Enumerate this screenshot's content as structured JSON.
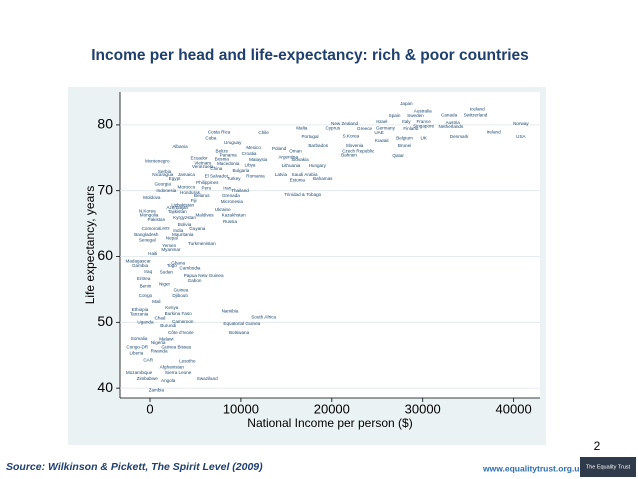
{
  "chart_data": {
    "type": "scatter",
    "title": "Income per head and life-expectancy: rich & poor countries",
    "xlabel": "National Income per person ($)",
    "ylabel": "Life expectancy, years",
    "xlim": [
      -3300,
      42900
    ],
    "ylim": [
      38.5,
      85
    ],
    "xticks": [
      0,
      10000,
      20000,
      30000,
      40000
    ],
    "yticks": [
      40,
      50,
      60,
      70,
      80
    ],
    "grid": true,
    "color": "#1a476f",
    "labels": [
      "Japan",
      "Australia",
      "Iceland",
      "Spain",
      "Sweden",
      "Canada",
      "Switzerland",
      "Israel",
      "Italy",
      "France",
      "Austria",
      "Norway",
      "New Zealand",
      "Malta",
      "Cyprus",
      "Greece",
      "Germany",
      "Finland",
      "Singapore",
      "Netherlands",
      "Costa Rica",
      "Chile",
      "S.Korea",
      "UAE",
      "Belgium",
      "UK",
      "Denmark",
      "Ireland",
      "USA",
      "Cuba",
      "Portugal",
      "Kuwait",
      "Uruguay",
      "Slovenia",
      "Albania",
      "Barbados",
      "Brunei",
      "Belize",
      "Mexico",
      "Poland",
      "Oman",
      "Czech Republic",
      "Panama",
      "Croatia",
      "Bahrain",
      "Qatar",
      "Argentina",
      "Ecuador",
      "Bosnia",
      "Malaysia",
      "Slovakia",
      "Montenegro",
      "Vietnam",
      "Macedonia",
      "Libya",
      "Lithuania",
      "Hungary",
      "Venezuela",
      "China",
      "Serbia",
      "Bulgaria",
      "Jamaica",
      "El Salvador",
      "Romania",
      "Latvia",
      "Saudi Arabia",
      "Nicaragua",
      "Egypt",
      "Turkey",
      "Estonia",
      "Bahamas",
      "Georgia",
      "Philippines",
      "Morocco",
      "Peru",
      "Iran",
      "Thailand",
      "Indonesia",
      "Honduras",
      "Belarus",
      "Grenada",
      "Trinidad & Tobago",
      "Moldova",
      "Fiji",
      "Micronesia",
      "Uzbekistan",
      "Azerbaijan",
      "N.Korea",
      "Tajikistan",
      "Ukraine",
      "Mongolia",
      "Maldives",
      "Kazakhstan",
      "Pakistan",
      "Kyrgyzstan",
      "Russia",
      "Bolivia",
      "Comoros",
      "Laos",
      "India",
      "Guyana",
      "Mauritania",
      "Bangladesh",
      "Senegal",
      "Nepal",
      "Turkmenistan",
      "Yemen",
      "Myanmar",
      "Haiti",
      "Madagascar",
      "Ghana",
      "Gambia",
      "Togo",
      "Cambodia",
      "Iraq",
      "Sudan",
      "Papua New Guinea",
      "Eritrea",
      "Gabon",
      "Benin",
      "Niger",
      "Guinea",
      "Congo",
      "Djibouti",
      "Mali",
      "Kenya",
      "Namibia",
      "Ethiopia",
      "Burkina Faso",
      "South Africa",
      "Tanzania",
      "Chad",
      "Uganda",
      "Cameroon",
      "Equatorial Guinea",
      "Burundi",
      "Côte d'Ivoire",
      "Botswana",
      "Somalia",
      "Malawi",
      "Nigeria",
      "Congo-DR",
      "Guinea Bissau",
      "Rwanda",
      "Liberia",
      "CAR",
      "Lesotho",
      "Afghanistan",
      "Mozambique",
      "Sierra Leone",
      "Zimbabwe",
      "Angola",
      "Swaziland",
      "Zambia"
    ],
    "x": [
      28200,
      30000,
      36000,
      26900,
      29200,
      32900,
      35800,
      25500,
      28200,
      30100,
      33300,
      40800,
      21400,
      16700,
      20100,
      23600,
      25900,
      28700,
      30100,
      33100,
      7600,
      12500,
      22100,
      25200,
      28000,
      30100,
      34000,
      37800,
      40800,
      6700,
      17600,
      25500,
      9100,
      22500,
      3300,
      18500,
      28000,
      7900,
      11400,
      14200,
      16000,
      22900,
      8600,
      10900,
      21900,
      27300,
      15200,
      5400,
      7900,
      11900,
      16500,
      800,
      5800,
      8600,
      11000,
      15500,
      18400,
      5800,
      7300,
      1600,
      10000,
      4000,
      7300,
      11600,
      14400,
      17000,
      1400,
      2700,
      9200,
      16200,
      19000,
      1400,
      6300,
      4000,
      6200,
      8500,
      9900,
      1800,
      4400,
      5700,
      8900,
      16800,
      200,
      4800,
      9000,
      3600,
      3000,
      -300,
      3000,
      8000,
      -100,
      6000,
      9200,
      700,
      3800,
      8800,
      3800,
      100,
      1600,
      3100,
      5200,
      3600,
      -400,
      -300,
      2400,
      5700,
      2100,
      2300,
      300,
      -1300,
      3100,
      -1100,
      2400,
      4400,
      -200,
      1800,
      5900,
      -700,
      4900,
      -500,
      1600,
      3400,
      -500,
      3300,
      700,
      2400,
      8800,
      -1100,
      3100,
      12500,
      -1200,
      1100,
      -500,
      3600,
      10100,
      2000,
      3400,
      9800,
      -1200,
      1800,
      900,
      -1400,
      2900,
      1000,
      -1500,
      -200,
      4100,
      2400,
      -1200,
      3100,
      -300,
      2000,
      6300,
      700
    ],
    "values": [
      83.2,
      82.1,
      82.4,
      81.4,
      81.4,
      81.5,
      81.5,
      80.5,
      80.5,
      80.5,
      80.3,
      80.2,
      80.2,
      79.5,
      79.5,
      79.4,
      79.5,
      79.4,
      79.8,
      79.7,
      78.9,
      78.8,
      78.3,
      78.8,
      78.0,
      78.0,
      78.2,
      78.9,
      78.2,
      78.0,
      78.2,
      77.6,
      77.3,
      76.8,
      76.7,
      76.8,
      76.8,
      76.0,
      76.5,
      76.4,
      76.0,
      76.0,
      75.4,
      75.6,
      75.4,
      75.3,
      75.1,
      74.9,
      74.8,
      74.7,
      74.7,
      74.5,
      74.2,
      74.1,
      73.9,
      73.8,
      73.8,
      73.6,
      73.3,
      72.9,
      73.0,
      72.4,
      72.2,
      72.2,
      72.4,
      72.4,
      72.4,
      71.8,
      71.8,
      71.6,
      71.8,
      71.0,
      71.2,
      70.5,
      70.4,
      70.4,
      70.0,
      70.0,
      69.7,
      69.2,
      69.2,
      69.4,
      68.9,
      68.5,
      68.3,
      67.8,
      67.4,
      66.9,
      66.8,
      67.1,
      66.3,
      66.3,
      66.3,
      65.6,
      65.9,
      65.3,
      64.8,
      64.2,
      64.3,
      63.9,
      64.2,
      63.3,
      63.3,
      62.5,
      62.8,
      61.9,
      61.6,
      61.0,
      60.4,
      59.3,
      59.0,
      58.6,
      58.6,
      58.2,
      57.7,
      57.6,
      57.1,
      56.6,
      56.3,
      55.5,
      55.8,
      54.9,
      54.0,
      54.0,
      53.1,
      52.2,
      51.7,
      51.9,
      51.3,
      50.8,
      51.2,
      50.6,
      50.0,
      50.1,
      49.8,
      49.5,
      48.4,
      48.4,
      47.5,
      47.4,
      46.9,
      46.2,
      46.2,
      45.6,
      45.3,
      44.2,
      44.1,
      43.2,
      42.3,
      42.3,
      41.4,
      41.1,
      41.4,
      39.7
    ]
  },
  "footer": {
    "source": "Source: Wilkinson & Pickett, The Spirit Level (2009)",
    "page": "2",
    "url": "www.equalitytrust.org.uk",
    "logo": "The Equality Trust"
  }
}
